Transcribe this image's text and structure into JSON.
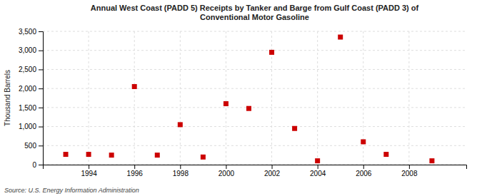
{
  "chart_data": {
    "type": "scatter",
    "title": "Annual West Coast (PADD 5) Receipts by Tanker and Barge from Gulf Coast (PADD 3) of\nConventional Motor Gasoline",
    "ylabel": "Thousand Barrels",
    "source": "Source: U.S. Energy Information Administration",
    "x": [
      1993,
      1994,
      1995,
      1996,
      1997,
      1998,
      1999,
      2000,
      2001,
      2002,
      2003,
      2004,
      2005,
      2006,
      2007,
      2009
    ],
    "values": [
      270,
      270,
      250,
      2050,
      250,
      1050,
      200,
      1600,
      1475,
      2950,
      950,
      100,
      3350,
      600,
      270,
      100
    ],
    "color": "#cc0000",
    "marker": "square",
    "xlim": [
      1992.0,
      2010.5
    ],
    "xticks": [
      1994,
      1996,
      1998,
      2000,
      2002,
      2004,
      2006,
      2008
    ],
    "ylim": [
      0,
      3500
    ],
    "yticks": [
      0,
      500,
      {
        "value": 1000,
        "label": "1,000"
      },
      {
        "value": 1500,
        "label": "1,500"
      },
      {
        "value": 2000,
        "label": "2,000"
      },
      {
        "value": 2500,
        "label": "2,500"
      },
      {
        "value": 3000,
        "label": "3,000"
      },
      {
        "value": 3500,
        "label": "3,500"
      }
    ],
    "grid": true
  }
}
